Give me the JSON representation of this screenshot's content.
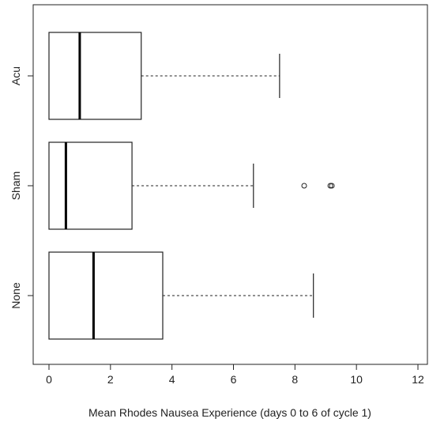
{
  "chart_data": {
    "type": "boxplot",
    "orientation": "horizontal",
    "title": "",
    "xlabel": "Mean Rhodes Nausea Experience (days 0 to 6 of cycle 1)",
    "ylabel": "",
    "xlim": [
      0,
      12
    ],
    "x_ticks": [
      "0",
      "2",
      "4",
      "6",
      "8",
      "10",
      "12"
    ],
    "grid": false,
    "legend": "none",
    "categories": [
      "Acu",
      "Sham",
      "None"
    ],
    "boxes": [
      {
        "category": "Acu",
        "whisker_low": 0,
        "q1": 0,
        "median": 1.0,
        "q3": 3.0,
        "whisker_high": 7.5,
        "outliers": []
      },
      {
        "category": "Sham",
        "whisker_low": 0,
        "q1": 0,
        "median": 0.55,
        "q3": 2.7,
        "whisker_high": 6.65,
        "outliers": [
          8.3,
          9.15,
          9.2
        ]
      },
      {
        "category": "None",
        "whisker_low": 0,
        "q1": 0,
        "median": 1.45,
        "q3": 3.7,
        "whisker_high": 8.6,
        "outliers": []
      }
    ],
    "colors": {
      "box_stroke": "#222222",
      "median_stroke": "#000000",
      "axis": "#222222"
    }
  }
}
